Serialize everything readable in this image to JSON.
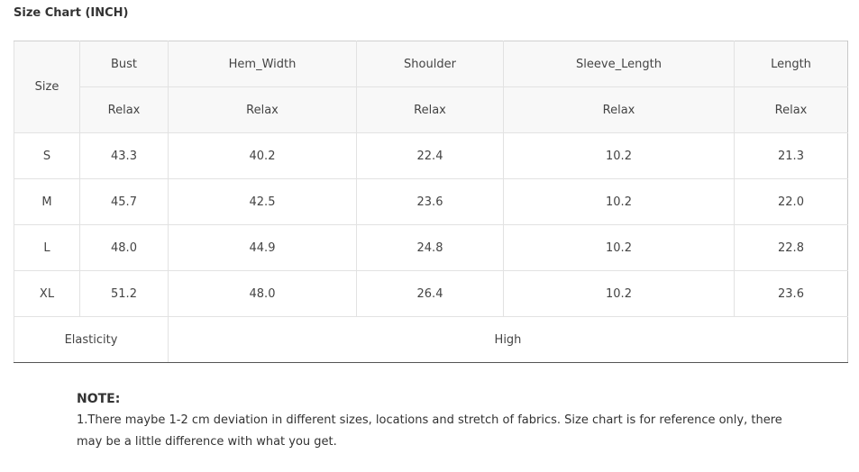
{
  "title": "Size Chart (INCH)",
  "table": {
    "size_header": "Size",
    "columns": [
      "Bust",
      "Hem_Width",
      "Shoulder",
      "Sleeve_Length",
      "Length"
    ],
    "fit_labels": [
      "Relax",
      "Relax",
      "Relax",
      "Relax",
      "Relax"
    ],
    "rows": [
      {
        "size": "S",
        "values": [
          "43.3",
          "40.2",
          "22.4",
          "10.2",
          "21.3"
        ]
      },
      {
        "size": "M",
        "values": [
          "45.7",
          "42.5",
          "23.6",
          "10.2",
          "22.0"
        ]
      },
      {
        "size": "L",
        "values": [
          "48.0",
          "44.9",
          "24.8",
          "10.2",
          "22.8"
        ]
      },
      {
        "size": "XL",
        "values": [
          "51.2",
          "48.0",
          "26.4",
          "10.2",
          "23.6"
        ]
      }
    ],
    "elasticity_label": "Elasticity",
    "elasticity_value": "High"
  },
  "note": {
    "title": "NOTE:",
    "text": "1.There maybe 1-2 cm deviation in different sizes, locations and stretch of fabrics. Size chart is for reference only, there may be a little difference with what you get."
  }
}
